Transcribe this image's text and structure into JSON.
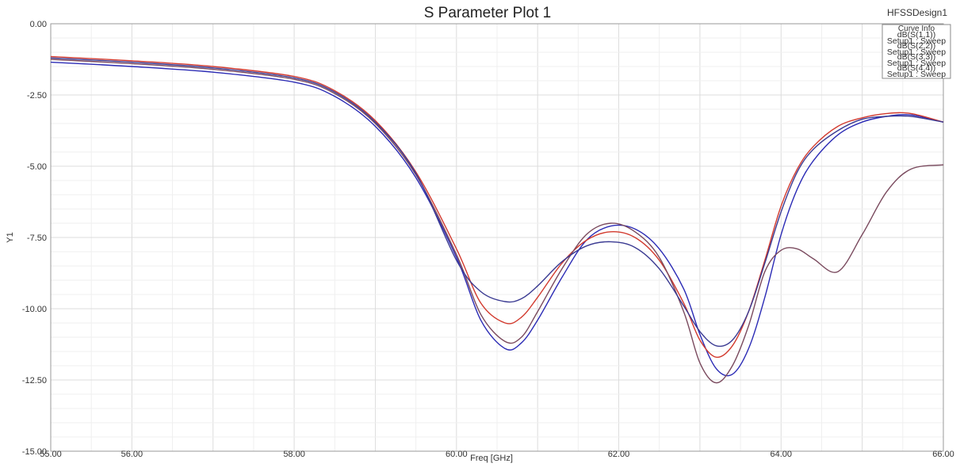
{
  "chart_data": {
    "type": "line",
    "title": "S Parameter Plot 1",
    "design": "HFSSDesign1",
    "xlabel": "Freq [GHz]",
    "ylabel": "Y1",
    "xlim": [
      55,
      66
    ],
    "ylim": [
      -15,
      0
    ],
    "xticks": [
      "55.00",
      "56.00",
      "58.00",
      "60.00",
      "62.00",
      "64.00",
      "66.00"
    ],
    "yticks": [
      "0.00",
      "-2.50",
      "-5.00",
      "-7.50",
      "-10.00",
      "-12.50",
      "-15.00"
    ],
    "grid": true,
    "legend": {
      "heading": "Curve Info",
      "position": "top-right",
      "entries": [
        {
          "name": "dB(S(1,1))",
          "setup": "Setup1 : Sweep"
        },
        {
          "name": "dB(S(2,2))",
          "setup": "Setup1 : Sweep"
        },
        {
          "name": "dB(S(3,3))",
          "setup": "Setup1 : Sweep"
        },
        {
          "name": "dB(S(4,4))",
          "setup": "Setup1 : Sweep"
        }
      ]
    },
    "x": [
      55.0,
      56.0,
      57.0,
      58.0,
      58.5,
      59.0,
      59.5,
      60.0,
      60.3,
      60.6,
      60.8,
      61.0,
      61.3,
      61.6,
      61.9,
      62.2,
      62.5,
      62.8,
      63.0,
      63.2,
      63.4,
      63.6,
      63.8,
      64.0,
      64.2,
      64.4,
      64.7,
      65.0,
      65.3,
      65.6,
      66.0
    ],
    "series": [
      {
        "color": "#2b2bb5",
        "values": [
          -1.35,
          -1.5,
          -1.7,
          -2.05,
          -2.55,
          -3.6,
          -5.4,
          -8.2,
          -10.4,
          -11.4,
          -11.2,
          -10.4,
          -8.9,
          -7.6,
          -7.1,
          -7.2,
          -7.9,
          -9.3,
          -10.9,
          -12.1,
          -12.3,
          -11.4,
          -9.6,
          -7.4,
          -5.8,
          -4.8,
          -3.9,
          -3.45,
          -3.25,
          -3.2,
          -3.45
        ]
      },
      {
        "color": "#d23a2e",
        "values": [
          -1.15,
          -1.3,
          -1.5,
          -1.85,
          -2.35,
          -3.4,
          -5.2,
          -7.9,
          -9.8,
          -10.5,
          -10.3,
          -9.6,
          -8.4,
          -7.6,
          -7.3,
          -7.5,
          -8.3,
          -9.8,
          -11.1,
          -11.7,
          -11.3,
          -10.1,
          -8.3,
          -6.4,
          -5.1,
          -4.3,
          -3.6,
          -3.3,
          -3.15,
          -3.15,
          -3.45
        ]
      },
      {
        "color": "#7a4a5e",
        "values": [
          -1.25,
          -1.4,
          -1.6,
          -1.95,
          -2.45,
          -3.5,
          -5.3,
          -8.1,
          -10.2,
          -11.15,
          -11.0,
          -10.1,
          -8.6,
          -7.4,
          -7.0,
          -7.3,
          -8.2,
          -10.1,
          -11.9,
          -12.6,
          -12.0,
          -10.6,
          -8.7,
          -7.95,
          -7.9,
          -8.25,
          -8.7,
          -7.4,
          -5.9,
          -5.1,
          -4.95
        ]
      },
      {
        "color": "#3a3a92",
        "values": [
          -1.2,
          -1.35,
          -1.55,
          -1.9,
          -2.4,
          -3.45,
          -5.25,
          -8.3,
          -9.4,
          -9.75,
          -9.65,
          -9.2,
          -8.35,
          -7.8,
          -7.65,
          -7.85,
          -8.6,
          -9.9,
          -10.8,
          -11.3,
          -11.1,
          -10.1,
          -8.4,
          -6.6,
          -5.2,
          -4.4,
          -3.75,
          -3.35,
          -3.25,
          -3.25,
          -3.45
        ]
      }
    ]
  }
}
